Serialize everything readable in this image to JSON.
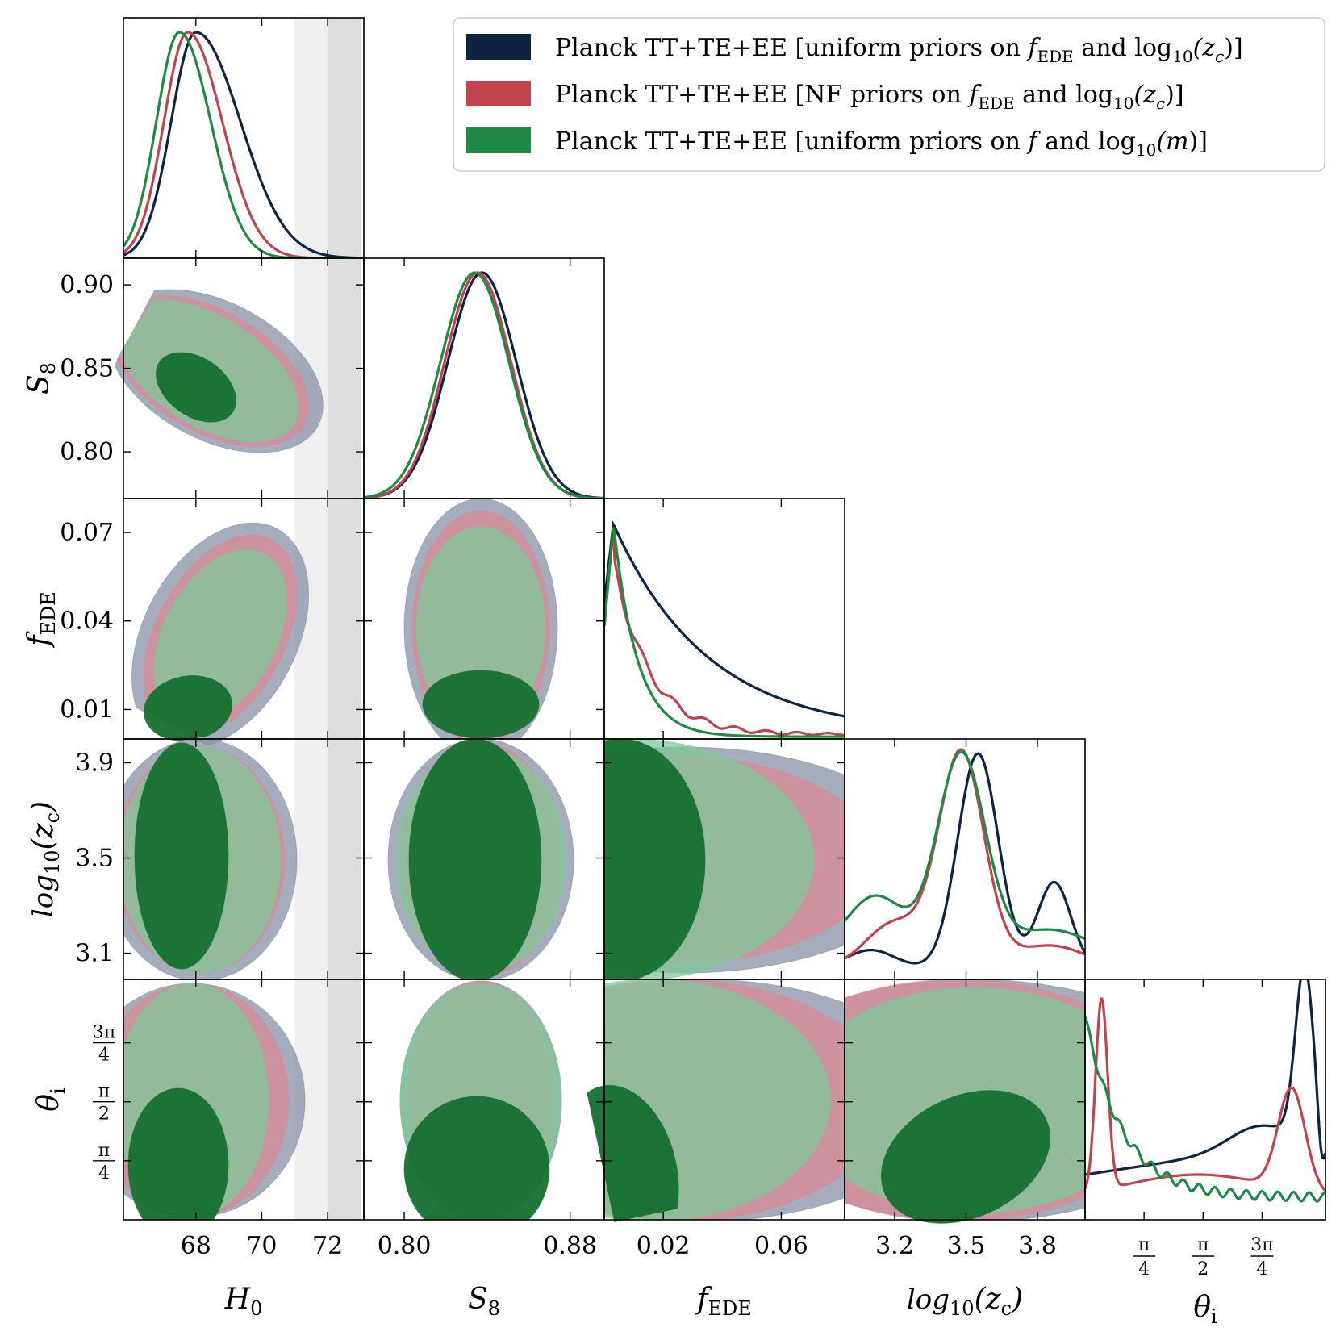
{
  "chart_data": {
    "type": "corner",
    "parameters": [
      "H0",
      "S8",
      "fEDE",
      "log10(zc)",
      "theta_i"
    ],
    "axis_labels": {
      "H0": {
        "main": "H",
        "sub": "0"
      },
      "S8": {
        "main": "S",
        "sub": "8"
      },
      "fEDE": {
        "main": "f",
        "sub": "EDE"
      },
      "log10zc": {
        "pre": "log",
        "presub": "10",
        "main": "(z",
        "sub": "c",
        "post": ")"
      },
      "theta": {
        "main": "θ",
        "sub": "i"
      }
    },
    "ticks": {
      "H0": [
        "68",
        "70",
        "72"
      ],
      "S8_x": [
        "0.80",
        "0.88"
      ],
      "S8_y": [
        "0.90",
        "0.85",
        "0.80"
      ],
      "fEDE_x": [
        "0.02",
        "0.06"
      ],
      "fEDE_y": [
        "0.07",
        "0.04",
        "0.01"
      ],
      "log10zc_x": [
        "3.2",
        "3.5",
        "3.8"
      ],
      "log10zc_y": [
        "3.9",
        "3.5",
        "3.1"
      ],
      "theta": [
        {
          "num": "π",
          "den": "4"
        },
        {
          "num": "π",
          "den": "2"
        },
        {
          "num": "3π",
          "den": "4"
        }
      ]
    },
    "h0_bands": [
      [
        71.0,
        72.0
      ],
      [
        72.0,
        73.0
      ]
    ],
    "series": [
      {
        "name": "Planck TT+TE+EE [uniform priors on f_EDE and log10(z_c)]",
        "color": "#0f2342",
        "H0_peak": 68.0,
        "S8_peak": 0.836,
        "fEDE_shape": "slow-decay",
        "log10zc_peaks": [
          3.55,
          3.85
        ],
        "theta_peaks": [
          0.15,
          2.85
        ]
      },
      {
        "name": "Planck TT+TE+EE [NF priors on f_EDE and log10(z_c)]",
        "color": "#c0434e",
        "H0_peak": 67.7,
        "S8_peak": 0.834,
        "fEDE_shape": "fast-decay",
        "log10zc_peaks": [
          3.48
        ],
        "theta_peaks": [
          0.4,
          2.7
        ]
      },
      {
        "name": "Planck TT+TE+EE [uniform priors on f and log10(m)]",
        "color": "#1f8a44",
        "H0_peak": 67.5,
        "S8_peak": 0.832,
        "fEDE_shape": "fastest-decay",
        "log10zc_peaks": [
          3.48
        ],
        "theta_peaks": [
          0.05
        ]
      }
    ]
  },
  "legend": {
    "items": [
      {
        "prefix": "Planck TT+TE+EE [uniform priors on ",
        "a": "f",
        "asub": "EDE",
        "mid": " and log",
        "msub": "10",
        "b": "(z",
        "bsub": "c",
        "end": ")]",
        "color": "#0f2342"
      },
      {
        "prefix": "Planck TT+TE+EE [NF priors on ",
        "a": "f",
        "asub": "EDE",
        "mid": " and log",
        "msub": "10",
        "b": "(z",
        "bsub": "c",
        "end": ")]",
        "color": "#c0434e"
      },
      {
        "prefix": "Planck TT+TE+EE [uniform priors on ",
        "a": "f",
        "asub": "",
        "mid": " and log",
        "msub": "10",
        "b": "(m",
        "bsub": "",
        "end": ")]",
        "color": "#1f8a44"
      }
    ]
  }
}
